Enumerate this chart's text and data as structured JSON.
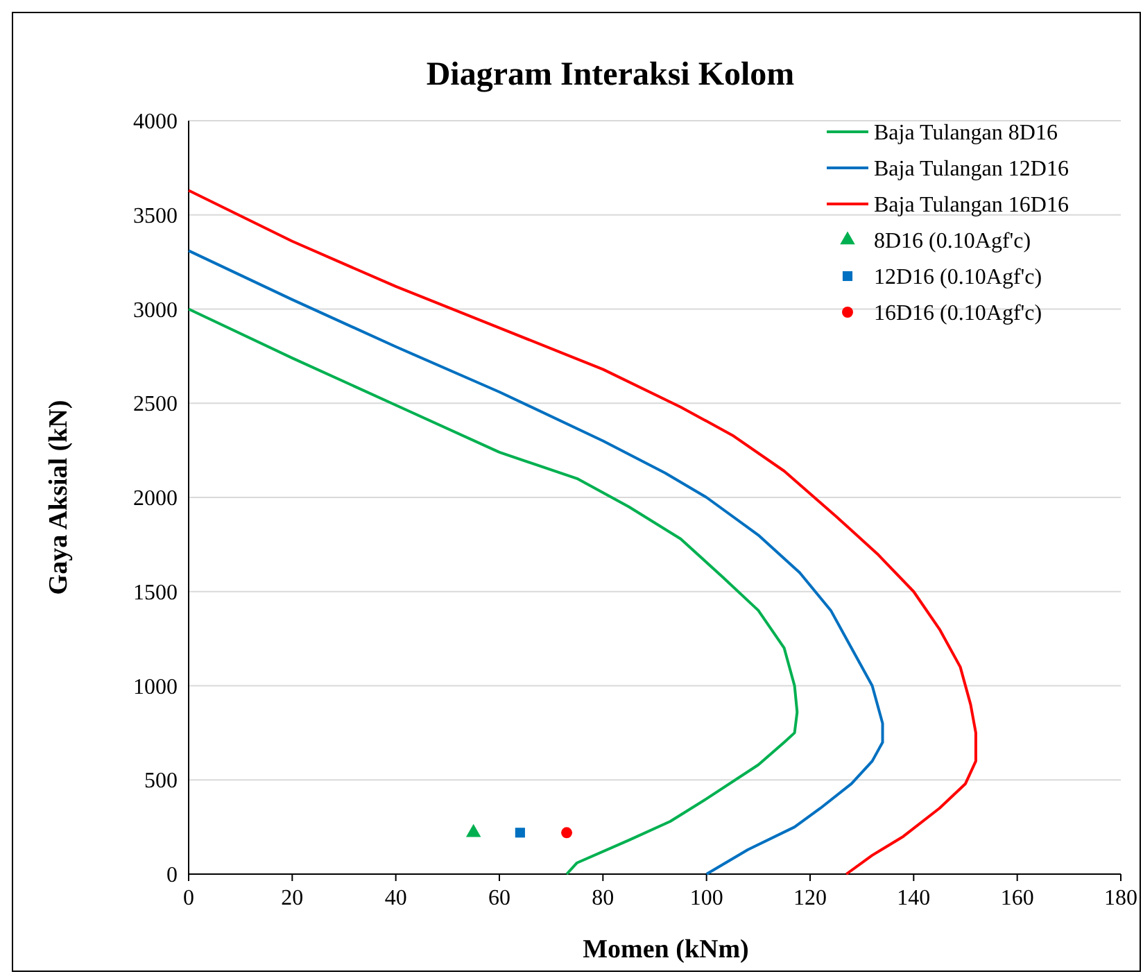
{
  "chart_data": {
    "type": "line",
    "title": "Diagram Interaksi Kolom",
    "xlabel": "Momen (kNm)",
    "ylabel": "Gaya Aksial (kN)",
    "xlim": [
      0,
      180
    ],
    "xticks": [
      0,
      20,
      40,
      60,
      80,
      100,
      120,
      140,
      160,
      180
    ],
    "ylim": [
      0,
      4000
    ],
    "yticks": [
      0,
      500,
      1000,
      1500,
      2000,
      2500,
      3000,
      3500,
      4000
    ],
    "grid": "y",
    "legend": "top right",
    "series": [
      {
        "name": "Baja Tulangan 8D16",
        "color": "#00b050",
        "marker": "none",
        "x": [
          0,
          20,
          40,
          60,
          75,
          85,
          95,
          103,
          110,
          115,
          117,
          117.5,
          117,
          115,
          110,
          100,
          93,
          85,
          75,
          73
        ],
        "values": [
          3000,
          2740,
          2490,
          2240,
          2100,
          1950,
          1780,
          1580,
          1400,
          1200,
          1000,
          860,
          750,
          700,
          580,
          400,
          280,
          180,
          60,
          0
        ]
      },
      {
        "name": "Baja Tulangan 12D16",
        "color": "#0070c0",
        "marker": "none",
        "x": [
          0,
          20,
          40,
          60,
          80,
          92,
          100,
          110,
          118,
          124,
          128,
          132,
          134,
          134,
          132,
          128,
          122,
          117,
          108,
          100
        ],
        "values": [
          3310,
          3050,
          2800,
          2560,
          2300,
          2130,
          2000,
          1800,
          1600,
          1400,
          1200,
          1000,
          800,
          700,
          600,
          480,
          350,
          250,
          130,
          0
        ]
      },
      {
        "name": "Baja Tulangan 16D16",
        "color": "#ff0000",
        "marker": "none",
        "x": [
          0,
          20,
          40,
          60,
          80,
          95,
          105,
          115,
          125,
          133,
          140,
          145,
          149,
          151,
          152,
          152,
          150,
          145,
          138,
          132,
          127
        ],
        "values": [
          3630,
          3360,
          3120,
          2900,
          2680,
          2480,
          2330,
          2140,
          1900,
          1700,
          1500,
          1300,
          1100,
          900,
          750,
          600,
          480,
          350,
          200,
          100,
          0
        ]
      },
      {
        "name": "8D16 (0.10Agf'c)",
        "type": "scatter",
        "color": "#00b050",
        "marker": "triangle",
        "x": [
          55
        ],
        "values": [
          220
        ]
      },
      {
        "name": "12D16 (0.10Agf'c)",
        "type": "scatter",
        "color": "#0070c0",
        "marker": "square",
        "x": [
          64
        ],
        "values": [
          220
        ]
      },
      {
        "name": "16D16 (0.10Agf'c)",
        "type": "scatter",
        "color": "#ff0000",
        "marker": "circle",
        "x": [
          73
        ],
        "values": [
          220
        ]
      }
    ]
  }
}
